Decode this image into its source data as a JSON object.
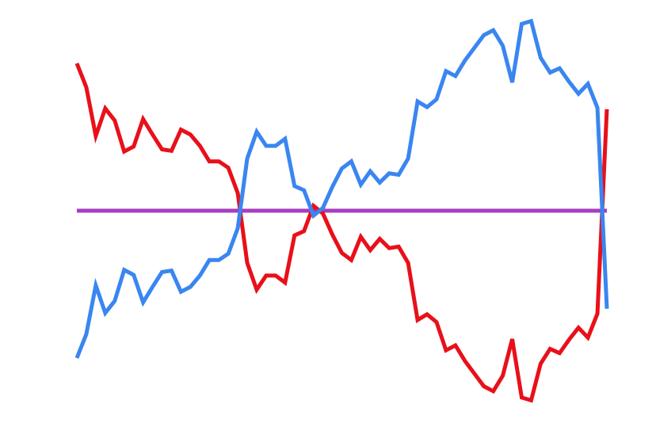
{
  "chart_data": {
    "type": "line",
    "x": [
      0,
      1,
      2,
      3,
      4,
      5,
      6,
      7,
      8,
      9,
      10,
      11,
      12,
      13,
      14,
      15,
      16,
      17,
      18,
      19,
      20,
      21,
      22,
      23,
      24,
      25,
      26,
      27,
      28,
      29,
      30,
      31,
      32,
      33,
      34,
      35,
      36,
      37,
      38,
      39,
      40,
      41,
      42,
      43,
      44,
      45,
      46,
      47,
      48,
      49,
      50,
      51,
      52,
      53,
      54,
      55,
      56
    ],
    "xlim": [
      0,
      56
    ],
    "ylim": [
      -3,
      3
    ],
    "series": [
      {
        "color": "#3a86f0",
        "values": [
          -2.09,
          -1.75,
          -1.06,
          -1.45,
          -1.28,
          -0.84,
          -0.91,
          -1.3,
          -1.08,
          -0.87,
          -0.85,
          -1.15,
          -1.08,
          -0.92,
          -0.7,
          -0.7,
          -0.61,
          -0.25,
          0.74,
          1.12,
          0.92,
          0.92,
          1.02,
          0.35,
          0.29,
          -0.07,
          0.04,
          0.34,
          0.6,
          0.7,
          0.37,
          0.56,
          0.4,
          0.53,
          0.51,
          0.74,
          1.55,
          1.47,
          1.58,
          1.98,
          1.91,
          2.13,
          2.31,
          2.49,
          2.56,
          2.34,
          1.82,
          2.65,
          2.69,
          2.17,
          1.96,
          2.02,
          1.83,
          1.66,
          1.8,
          1.46,
          -1.39
        ]
      },
      {
        "color": "#e8101a",
        "values": [
          2.09,
          1.75,
          1.06,
          1.45,
          1.28,
          0.84,
          0.91,
          1.3,
          1.08,
          0.87,
          0.85,
          1.15,
          1.08,
          0.92,
          0.7,
          0.7,
          0.61,
          0.25,
          -0.74,
          -1.12,
          -0.92,
          -0.92,
          -1.02,
          -0.35,
          -0.29,
          0.07,
          -0.04,
          -0.34,
          -0.6,
          -0.7,
          -0.37,
          -0.56,
          -0.4,
          -0.53,
          -0.51,
          -0.74,
          -1.55,
          -1.47,
          -1.58,
          -1.98,
          -1.91,
          -2.13,
          -2.31,
          -2.49,
          -2.56,
          -2.34,
          -1.82,
          -2.65,
          -2.69,
          -2.17,
          -1.96,
          -2.02,
          -1.83,
          -1.66,
          -1.8,
          -1.46,
          1.44
        ]
      },
      {
        "color": "#a83cc0",
        "values": [
          0,
          0,
          0,
          0,
          0,
          0,
          0,
          0,
          0,
          0,
          0,
          0,
          0,
          0,
          0,
          0,
          0,
          0,
          0,
          0,
          0,
          0,
          0,
          0,
          0,
          0,
          0,
          0,
          0,
          0,
          0,
          0,
          0,
          0,
          0,
          0,
          0,
          0,
          0,
          0,
          0,
          0,
          0,
          0,
          0,
          0,
          0,
          0,
          0,
          0,
          0,
          0,
          0,
          0,
          0,
          0,
          0
        ]
      }
    ]
  }
}
